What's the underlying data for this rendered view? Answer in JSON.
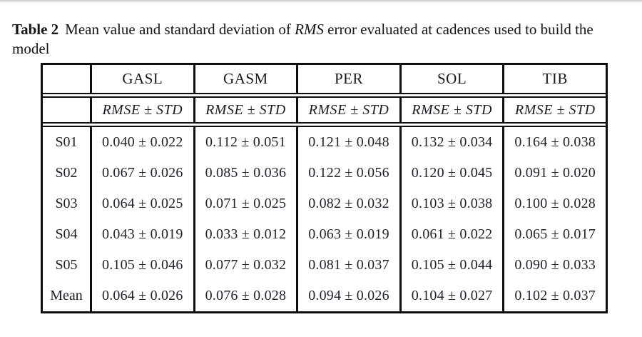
{
  "caption": {
    "label": "Table 2",
    "prefix": "Mean value and standard deviation of ",
    "emph": "RMS",
    "suffix": " error evaluated at cadences used to build the model"
  },
  "table": {
    "columns": [
      "GASL",
      "GASM",
      "PER",
      "SOL",
      "TIB"
    ],
    "subheader": "RMSE ± STD",
    "rows": [
      {
        "label": "S01",
        "values": [
          "0.040 ± 0.022",
          "0.112 ± 0.051",
          "0.121 ± 0.048",
          "0.132 ± 0.034",
          "0.164 ± 0.038"
        ]
      },
      {
        "label": "S02",
        "values": [
          "0.067 ± 0.026",
          "0.085 ± 0.036",
          "0.122 ± 0.056",
          "0.120 ± 0.045",
          "0.091 ± 0.020"
        ]
      },
      {
        "label": "S03",
        "values": [
          "0.064 ± 0.025",
          "0.071 ± 0.025",
          "0.082 ± 0.032",
          "0.103 ± 0.038",
          "0.100 ± 0.028"
        ]
      },
      {
        "label": "S04",
        "values": [
          "0.043 ± 0.019",
          "0.033 ± 0.012",
          "0.063 ± 0.019",
          "0.061 ± 0.022",
          "0.065 ± 0.017"
        ]
      },
      {
        "label": "S05",
        "values": [
          "0.105 ± 0.046",
          "0.077 ± 0.032",
          "0.081 ± 0.037",
          "0.105 ± 0.044",
          "0.090 ± 0.033"
        ]
      },
      {
        "label": "Mean",
        "values": [
          "0.064 ± 0.026",
          "0.076 ± 0.028",
          "0.094 ± 0.026",
          "0.104 ± 0.027",
          "0.102 ± 0.037"
        ]
      }
    ]
  }
}
